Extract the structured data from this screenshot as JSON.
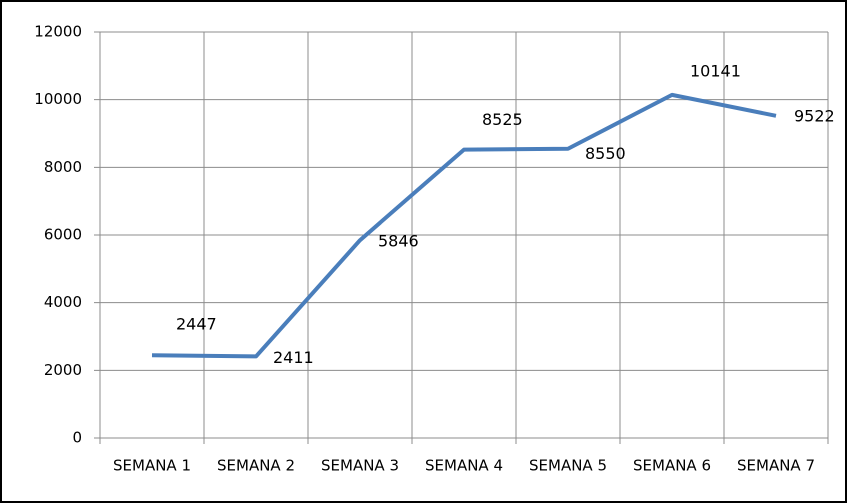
{
  "chart_data": {
    "type": "line",
    "categories": [
      "SEMANA 1",
      "SEMANA 2",
      "SEMANA 3",
      "SEMANA 4",
      "SEMANA 5",
      "SEMANA 6",
      "SEMANA 7"
    ],
    "series": [
      {
        "color": "#4a7ebb",
        "values": [
          2447,
          2411,
          5846,
          8525,
          8550,
          10141,
          9522
        ]
      }
    ],
    "ylim": [
      0,
      12000
    ],
    "yticks": [
      0,
      2000,
      4000,
      6000,
      8000,
      10000,
      12000
    ],
    "grid": true
  }
}
